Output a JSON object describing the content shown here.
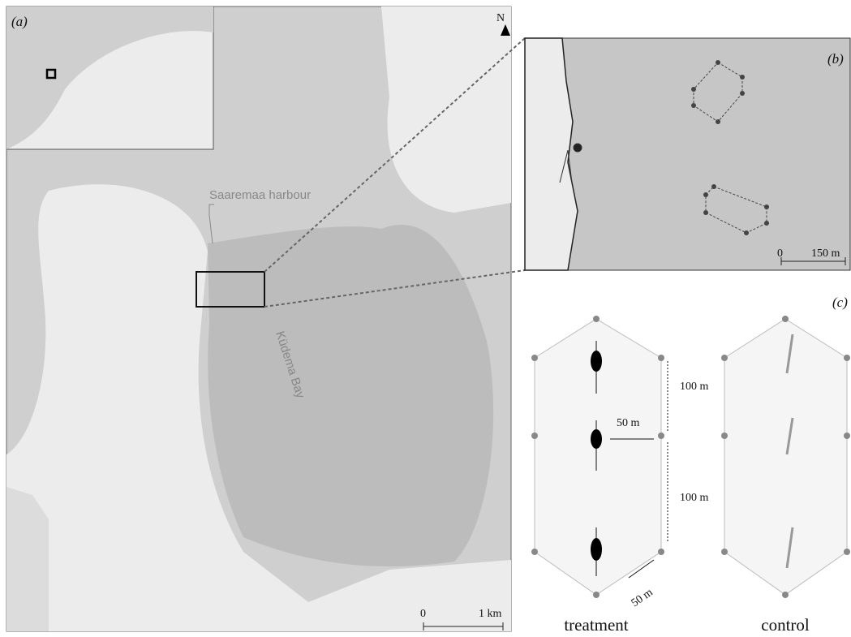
{
  "panel_a": {
    "label": "(a)",
    "north": "N",
    "harbour": "Saaremaa harbour",
    "bay": "Küdema Bay",
    "scale": {
      "start": "0",
      "end": "1 km"
    }
  },
  "panel_b": {
    "label": "(b)",
    "scale": {
      "start": "0",
      "end": "150 m"
    }
  },
  "panel_c": {
    "label": "(c)",
    "distances": [
      "100 m",
      "50 m",
      "100 m",
      "50 m"
    ],
    "groups": [
      "treatment",
      "control"
    ]
  }
}
